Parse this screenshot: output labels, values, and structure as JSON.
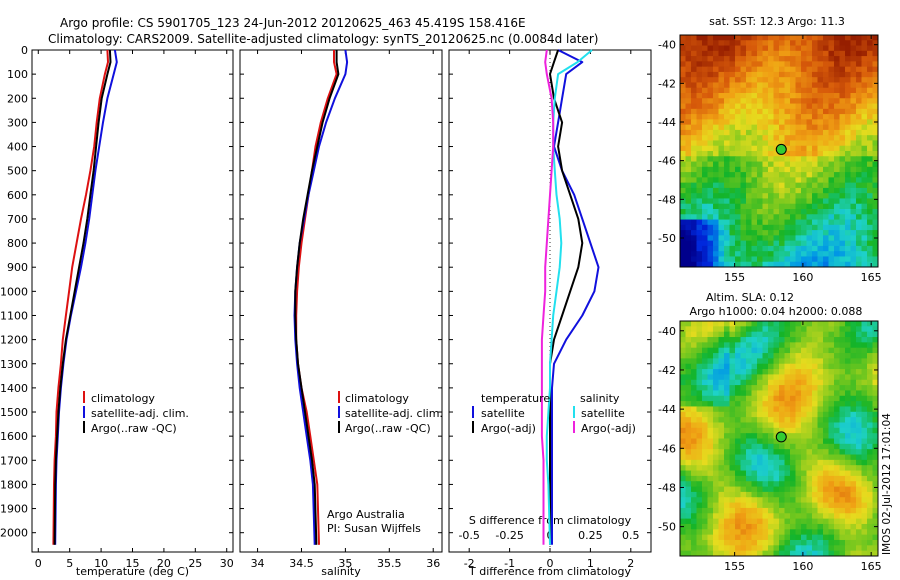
{
  "figure": {
    "title_line1": "Argo profile: CS 5901705_123 24-Jun-2012 20120625_463 45.419S 158.416E",
    "title_line2": "Climatology: CARS2009. Satellite-adjusted climatology: synTS_20120625.nc (0.0084d later)",
    "credit": "Argo Australia",
    "pi": "PI: Susan Wijffels",
    "stamp": "IMOS 02-Jul-2012 17:01:04"
  },
  "colors": {
    "climatology": "#dd1111",
    "satellite": "#1010dd",
    "argo": "#000000",
    "salinity_satellite": "#22e0ee",
    "salinity_argo": "#ee22dd"
  },
  "chart_data": [
    {
      "type": "line",
      "xlabel": "temperature (deg C)",
      "ylabel": "",
      "xlim": [
        -1,
        31
      ],
      "ylim": [
        2080,
        0
      ],
      "xticks": [
        0,
        5,
        10,
        15,
        20,
        25,
        30
      ],
      "yticks": [
        0,
        100,
        200,
        300,
        400,
        500,
        600,
        700,
        800,
        900,
        1000,
        1100,
        1200,
        1300,
        1400,
        1500,
        1600,
        1700,
        1800,
        1900,
        2000
      ],
      "legend": [
        "climatology",
        "satellite-adj. clim.",
        "Argo(..raw -QC)"
      ],
      "legend_position": "lower-center",
      "series": [
        {
          "name": "climatology",
          "color": "#dd1111",
          "x": [
            11.0,
            11.1,
            10.6,
            9.8,
            9.3,
            8.9,
            8.3,
            7.6,
            6.8,
            6.1,
            5.4,
            4.9,
            4.4,
            3.9,
            3.6,
            3.2,
            2.9,
            2.8,
            2.6,
            2.5,
            2.4
          ],
          "y": [
            0,
            50,
            100,
            200,
            300,
            400,
            500,
            600,
            700,
            800,
            900,
            1000,
            1100,
            1200,
            1300,
            1400,
            1500,
            1600,
            1700,
            1800,
            2050
          ]
        },
        {
          "name": "satellite-adj. clim.",
          "color": "#1010dd",
          "x": [
            12.2,
            12.5,
            12.0,
            11.0,
            10.3,
            9.7,
            9.1,
            8.6,
            8.1,
            7.5,
            6.8,
            6.0,
            5.2,
            4.5,
            4.0,
            3.6,
            3.3,
            3.1,
            2.9,
            2.8,
            2.7
          ],
          "y": [
            0,
            50,
            100,
            200,
            300,
            400,
            500,
            600,
            700,
            800,
            900,
            1000,
            1100,
            1200,
            1300,
            1400,
            1500,
            1600,
            1700,
            1800,
            2050
          ]
        },
        {
          "name": "Argo(..raw -QC)",
          "color": "#000000",
          "x": [
            11.4,
            11.5,
            11.0,
            10.1,
            9.6,
            9.2,
            8.8,
            8.3,
            7.8,
            7.2,
            6.5,
            5.8,
            5.1,
            4.4,
            3.9,
            3.5,
            3.2,
            3.0,
            2.8,
            2.7,
            2.6
          ],
          "y": [
            0,
            50,
            100,
            200,
            300,
            400,
            500,
            600,
            700,
            800,
            900,
            1000,
            1100,
            1200,
            1300,
            1400,
            1500,
            1600,
            1700,
            1800,
            2050
          ]
        }
      ]
    },
    {
      "type": "line",
      "xlabel": "salinity",
      "ylabel": "",
      "xlim": [
        33.8,
        36.1
      ],
      "ylim": [
        2080,
        0
      ],
      "xticks": [
        34,
        34.5,
        35,
        35.5,
        36
      ],
      "legend": [
        "climatology",
        "satellite-adj. clim.",
        "Argo(..raw -QC)"
      ],
      "legend_position": "lower-right",
      "series": [
        {
          "name": "climatology",
          "color": "#dd1111",
          "x": [
            34.87,
            34.87,
            34.9,
            34.8,
            34.72,
            34.66,
            34.62,
            34.58,
            34.54,
            34.5,
            34.47,
            34.45,
            34.44,
            34.44,
            34.46,
            34.5,
            34.56,
            34.6,
            34.64,
            34.68,
            34.7
          ],
          "y": [
            0,
            50,
            100,
            200,
            300,
            400,
            500,
            600,
            700,
            800,
            900,
            1000,
            1100,
            1200,
            1300,
            1400,
            1500,
            1600,
            1700,
            1800,
            2050
          ]
        },
        {
          "name": "satellite-adj. clim.",
          "color": "#1010dd",
          "x": [
            35.0,
            35.02,
            35.0,
            34.88,
            34.78,
            34.7,
            34.64,
            34.58,
            34.53,
            34.48,
            34.45,
            34.43,
            34.42,
            34.43,
            34.45,
            34.48,
            34.52,
            34.56,
            34.6,
            34.63,
            34.65
          ],
          "y": [
            0,
            50,
            100,
            200,
            300,
            400,
            500,
            600,
            700,
            800,
            900,
            1000,
            1100,
            1200,
            1300,
            1400,
            1500,
            1600,
            1700,
            1800,
            2050
          ]
        },
        {
          "name": "Argo(..raw -QC)",
          "color": "#000000",
          "x": [
            34.9,
            34.9,
            34.92,
            34.82,
            34.74,
            34.68,
            34.62,
            34.57,
            34.52,
            34.48,
            34.45,
            34.43,
            34.43,
            34.44,
            34.46,
            34.5,
            34.54,
            34.58,
            34.62,
            34.65,
            34.67
          ],
          "y": [
            0,
            50,
            100,
            200,
            300,
            400,
            500,
            600,
            700,
            800,
            900,
            1000,
            1100,
            1200,
            1300,
            1400,
            1500,
            1600,
            1700,
            1800,
            2050
          ]
        }
      ]
    },
    {
      "type": "line",
      "xlabel": "T difference from climatology",
      "xlabel_top": "S difference from climatology",
      "ylabel": "",
      "xlim": [
        -2.5,
        2.5
      ],
      "ylim": [
        2080,
        0
      ],
      "xticks": [
        -2,
        -1,
        0,
        1,
        2
      ],
      "xticks_top": [
        "-0.5",
        "-0.25",
        "0",
        "0.25",
        "0.5"
      ],
      "legend_temperature_title": "temperature",
      "legend_salinity_title": "salinity",
      "legend": [
        "satellite",
        "Argo(-adj)",
        "satellite",
        "Argo(-adj)"
      ],
      "series": [
        {
          "name": "satellite",
          "color": "#1010dd",
          "x": [
            0.2,
            0.8,
            0.4,
            0.3,
            0.2,
            0.1,
            0.3,
            0.6,
            0.8,
            1.0,
            1.2,
            1.1,
            0.8,
            0.4,
            0.1,
            0.05,
            0.05,
            0.05,
            0.05,
            0.05,
            0.05
          ],
          "y": [
            0,
            50,
            100,
            200,
            300,
            400,
            500,
            600,
            700,
            800,
            900,
            1000,
            1100,
            1200,
            1300,
            1400,
            1500,
            1600,
            1700,
            1800,
            2050
          ]
        },
        {
          "name": "Argo(-adj)",
          "color": "#000000",
          "x": [
            0.2,
            0.1,
            0.0,
            0.1,
            0.3,
            0.2,
            0.3,
            0.5,
            0.7,
            0.8,
            0.7,
            0.5,
            0.3,
            0.1,
            0.0,
            0.0,
            0.0,
            0.0,
            0.0,
            0.0,
            0.0
          ],
          "y": [
            0,
            50,
            100,
            200,
            300,
            400,
            500,
            600,
            700,
            800,
            900,
            1000,
            1100,
            1200,
            1300,
            1400,
            1500,
            1600,
            1700,
            1800,
            2050
          ]
        },
        {
          "name": "satellite",
          "color": "#22e0ee",
          "x": [
            0.26,
            0.17,
            0.05,
            0.03,
            0.02,
            0.02,
            0.03,
            0.04,
            0.06,
            0.07,
            0.06,
            0.04,
            0.02,
            0.01,
            0.0,
            0.0,
            -0.01,
            -0.02,
            -0.02,
            -0.01,
            0.0
          ],
          "y": [
            0,
            50,
            100,
            200,
            300,
            400,
            500,
            600,
            700,
            800,
            900,
            1000,
            1100,
            1200,
            1300,
            1400,
            1500,
            1600,
            1700,
            1800,
            2050
          ]
        },
        {
          "name": "Argo(-adj)",
          "color": "#ee22dd",
          "x": [
            -0.02,
            -0.03,
            -0.02,
            0.01,
            0.02,
            0.02,
            0.01,
            0.0,
            -0.01,
            -0.02,
            -0.03,
            -0.03,
            -0.04,
            -0.05,
            -0.05,
            -0.05,
            -0.05,
            -0.05,
            -0.04,
            -0.04,
            -0.04
          ],
          "y": [
            0,
            50,
            100,
            200,
            300,
            400,
            500,
            600,
            700,
            800,
            900,
            1000,
            1100,
            1200,
            1300,
            1400,
            1500,
            1600,
            1700,
            1800,
            2050
          ]
        }
      ]
    },
    {
      "type": "heatmap",
      "title": "sat. SST: 12.3 Argo: 11.3",
      "xlim": [
        151,
        165.5
      ],
      "ylim": [
        -51.5,
        -39.5
      ],
      "xticks": [
        155,
        160,
        165
      ],
      "yticks": [
        -40,
        -42,
        -44,
        -46,
        -48,
        -50
      ],
      "marker": {
        "lon": 158.416,
        "lat": -45.419
      }
    },
    {
      "type": "heatmap",
      "title_line1": "Altim. SLA: 0.12",
      "title_line2": "Argo h1000: 0.04 h2000: 0.088",
      "xlim": [
        151,
        165.5
      ],
      "ylim": [
        -51.5,
        -39.5
      ],
      "xticks": [
        155,
        160,
        165
      ],
      "yticks": [
        -40,
        -42,
        -44,
        -46,
        -48,
        -50
      ],
      "marker": {
        "lon": 158.416,
        "lat": -45.419
      }
    }
  ]
}
